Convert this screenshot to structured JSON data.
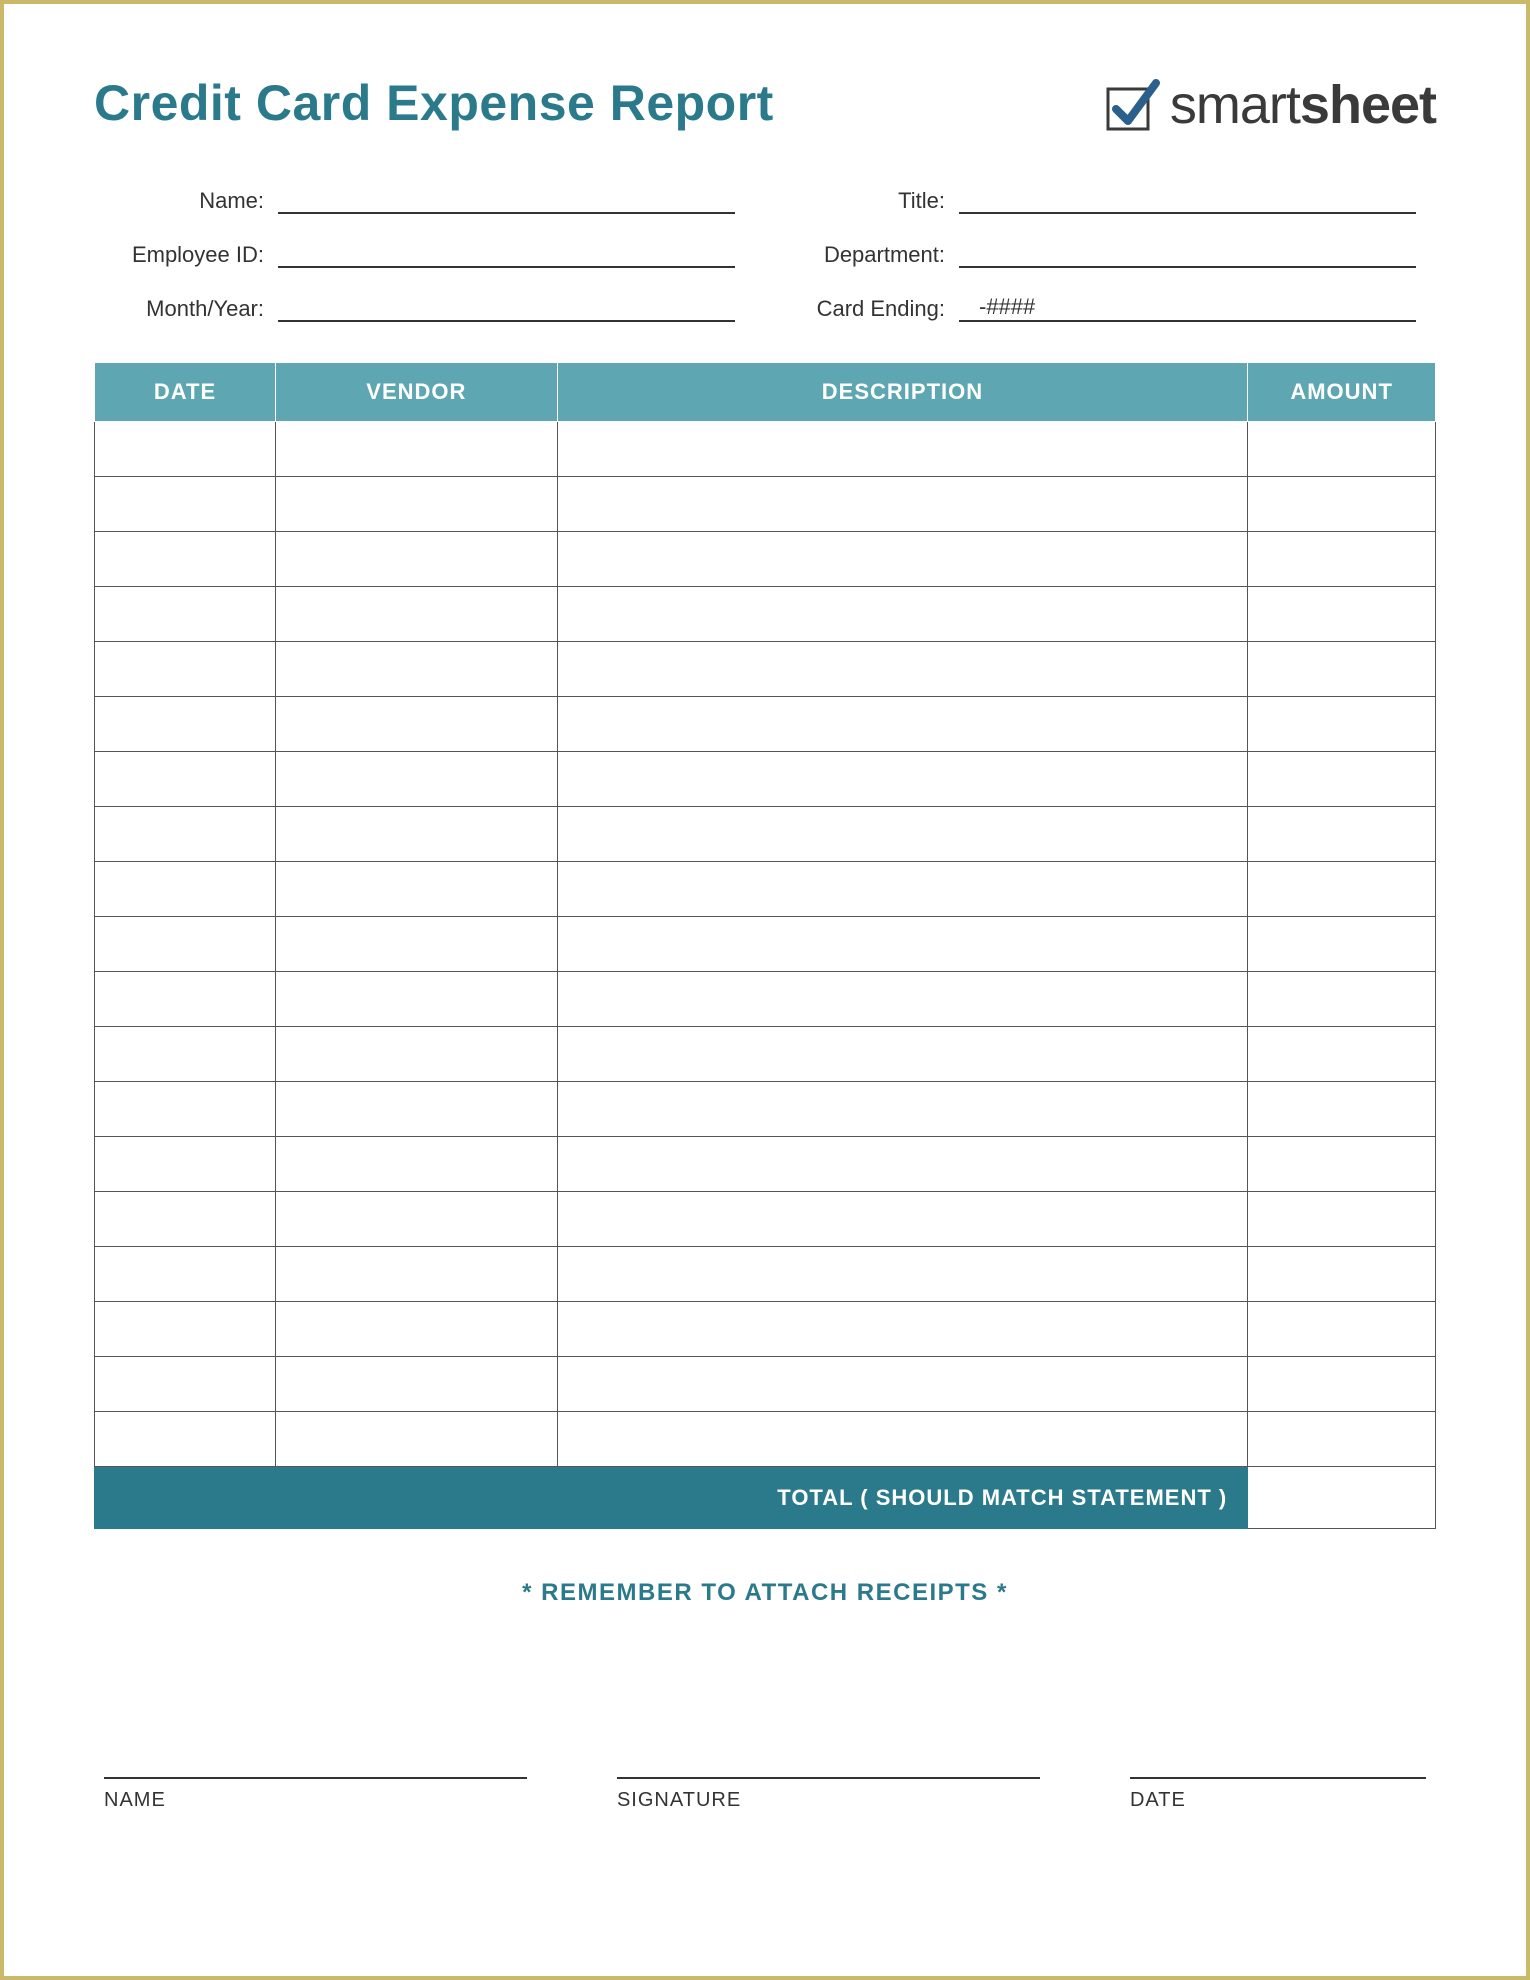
{
  "title": "Credit Card Expense Report",
  "logo": {
    "brand_prefix": "smart",
    "brand_suffix": "sheet",
    "check_color": "#2b5f8c",
    "box_color": "#3a3a3a"
  },
  "colors": {
    "border": "#c9b968",
    "accent_teal_light": "#5ea7b2",
    "accent_teal_dark": "#2b7a8c",
    "text": "#333333",
    "grid_line": "#555555",
    "background": "#ffffff"
  },
  "meta_fields": {
    "left": [
      {
        "label": "Name:",
        "value": ""
      },
      {
        "label": "Employee ID:",
        "value": ""
      },
      {
        "label": "Month/Year:",
        "value": ""
      }
    ],
    "right": [
      {
        "label": "Title:",
        "value": ""
      },
      {
        "label": "Department:",
        "value": ""
      },
      {
        "label": "Card Ending:",
        "value": "-####"
      }
    ]
  },
  "table": {
    "columns": [
      "DATE",
      "VENDOR",
      "DESCRIPTION",
      "AMOUNT"
    ],
    "column_widths_pct": [
      13.5,
      21,
      51.5,
      14
    ],
    "row_count": 19,
    "total_label": "TOTAL ( SHOULD MATCH STATEMENT )",
    "total_value": ""
  },
  "reminder_text": "* REMEMBER TO ATTACH RECEIPTS *",
  "signatures": [
    "NAME",
    "SIGNATURE",
    "DATE"
  ]
}
